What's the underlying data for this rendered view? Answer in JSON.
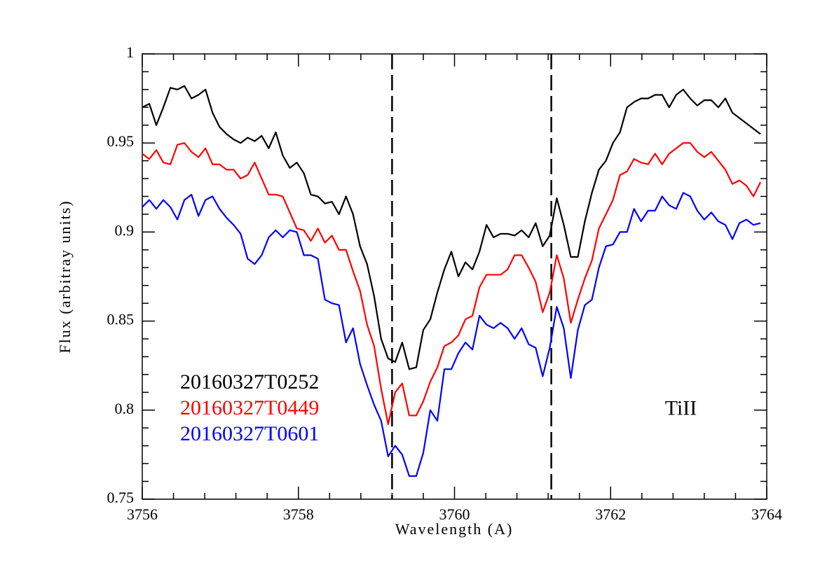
{
  "chart_data": {
    "type": "line",
    "xlabel": "Wavelength (A)",
    "ylabel": "Flux (arbitray units)",
    "annotations": [
      {
        "text": "TiII",
        "x": 3762.9,
        "y": 0.8
      }
    ],
    "vlines": [
      3759.2,
      3761.24
    ],
    "xlim": [
      3756,
      3764
    ],
    "xticks": [
      3756,
      3758,
      3760,
      3762,
      3764
    ],
    "ylim": [
      0.75,
      1
    ],
    "yticks": [
      0.75,
      0.8,
      0.85,
      0.9,
      0.95,
      1
    ],
    "x": [
      3756.0,
      3756.09,
      3756.18,
      3756.27,
      3756.36,
      3756.45,
      3756.54,
      3756.63,
      3756.72,
      3756.81,
      3756.9,
      3756.99,
      3757.08,
      3757.17,
      3757.26,
      3757.35,
      3757.44,
      3757.53,
      3757.62,
      3757.71,
      3757.8,
      3757.89,
      3757.98,
      3758.07,
      3758.16,
      3758.25,
      3758.34,
      3758.43,
      3758.52,
      3758.61,
      3758.7,
      3758.79,
      3758.88,
      3758.97,
      3759.06,
      3759.15,
      3759.24,
      3759.33,
      3759.42,
      3759.51,
      3759.6,
      3759.69,
      3759.78,
      3759.87,
      3759.96,
      3760.05,
      3760.14,
      3760.23,
      3760.32,
      3760.41,
      3760.5,
      3760.59,
      3760.68,
      3760.77,
      3760.86,
      3760.95,
      3761.04,
      3761.13,
      3761.22,
      3761.31,
      3761.4,
      3761.49,
      3761.58,
      3761.67,
      3761.76,
      3761.85,
      3761.94,
      3762.03,
      3762.12,
      3762.21,
      3762.3,
      3762.39,
      3762.48,
      3762.57,
      3762.66,
      3762.75,
      3762.84,
      3762.93,
      3763.02,
      3763.11,
      3763.2,
      3763.29,
      3763.38,
      3763.47,
      3763.56,
      3763.65,
      3763.74,
      3763.83,
      3763.92
    ],
    "series": [
      {
        "name": "20160327T0252",
        "color": "#000000",
        "values": [
          0.97,
          0.972,
          0.96,
          0.97,
          0.981,
          0.98,
          0.982,
          0.975,
          0.977,
          0.98,
          0.967,
          0.959,
          0.955,
          0.952,
          0.95,
          0.953,
          0.951,
          0.954,
          0.947,
          0.956,
          0.943,
          0.936,
          0.939,
          0.933,
          0.921,
          0.92,
          0.916,
          0.917,
          0.91,
          0.92,
          0.91,
          0.892,
          0.882,
          0.864,
          0.84,
          0.829,
          0.827,
          0.838,
          0.823,
          0.824,
          0.845,
          0.851,
          0.866,
          0.879,
          0.889,
          0.875,
          0.883,
          0.879,
          0.889,
          0.904,
          0.897,
          0.899,
          0.899,
          0.898,
          0.901,
          0.897,
          0.905,
          0.892,
          0.898,
          0.919,
          0.904,
          0.886,
          0.886,
          0.906,
          0.922,
          0.935,
          0.94,
          0.95,
          0.956,
          0.97,
          0.973,
          0.975,
          0.975,
          0.977,
          0.977,
          0.97,
          0.977,
          0.98,
          0.975,
          0.971,
          0.974,
          0.974,
          0.97,
          0.975,
          0.967,
          0.964,
          0.961,
          0.958,
          0.955
        ]
      },
      {
        "name": "20160327T0449",
        "color": "#ff0000",
        "values": [
          0.944,
          0.941,
          0.946,
          0.939,
          0.938,
          0.949,
          0.95,
          0.945,
          0.942,
          0.947,
          0.938,
          0.938,
          0.935,
          0.935,
          0.93,
          0.932,
          0.939,
          0.93,
          0.921,
          0.921,
          0.92,
          0.911,
          0.902,
          0.901,
          0.895,
          0.902,
          0.894,
          0.898,
          0.89,
          0.89,
          0.878,
          0.867,
          0.848,
          0.836,
          0.812,
          0.792,
          0.81,
          0.815,
          0.797,
          0.797,
          0.805,
          0.816,
          0.824,
          0.836,
          0.838,
          0.842,
          0.851,
          0.853,
          0.869,
          0.876,
          0.876,
          0.876,
          0.879,
          0.887,
          0.887,
          0.88,
          0.872,
          0.855,
          0.866,
          0.887,
          0.874,
          0.849,
          0.862,
          0.874,
          0.884,
          0.902,
          0.91,
          0.918,
          0.932,
          0.934,
          0.941,
          0.939,
          0.938,
          0.944,
          0.938,
          0.944,
          0.947,
          0.95,
          0.95,
          0.945,
          0.942,
          0.945,
          0.94,
          0.935,
          0.927,
          0.929,
          0.926,
          0.92,
          0.928
        ]
      },
      {
        "name": "20160327T0601",
        "color": "#0000ff",
        "values": [
          0.914,
          0.918,
          0.913,
          0.918,
          0.914,
          0.907,
          0.918,
          0.921,
          0.909,
          0.918,
          0.92,
          0.913,
          0.908,
          0.904,
          0.899,
          0.885,
          0.882,
          0.887,
          0.897,
          0.901,
          0.897,
          0.901,
          0.9,
          0.887,
          0.887,
          0.885,
          0.862,
          0.86,
          0.859,
          0.838,
          0.846,
          0.826,
          0.814,
          0.803,
          0.794,
          0.774,
          0.78,
          0.775,
          0.763,
          0.763,
          0.776,
          0.8,
          0.794,
          0.823,
          0.823,
          0.832,
          0.838,
          0.834,
          0.853,
          0.848,
          0.846,
          0.849,
          0.846,
          0.84,
          0.846,
          0.837,
          0.835,
          0.819,
          0.835,
          0.858,
          0.846,
          0.818,
          0.845,
          0.859,
          0.862,
          0.88,
          0.892,
          0.893,
          0.9,
          0.9,
          0.913,
          0.906,
          0.912,
          0.912,
          0.92,
          0.915,
          0.913,
          0.922,
          0.92,
          0.912,
          0.907,
          0.911,
          0.906,
          0.904,
          0.896,
          0.905,
          0.907,
          0.904,
          0.905
        ]
      }
    ]
  }
}
